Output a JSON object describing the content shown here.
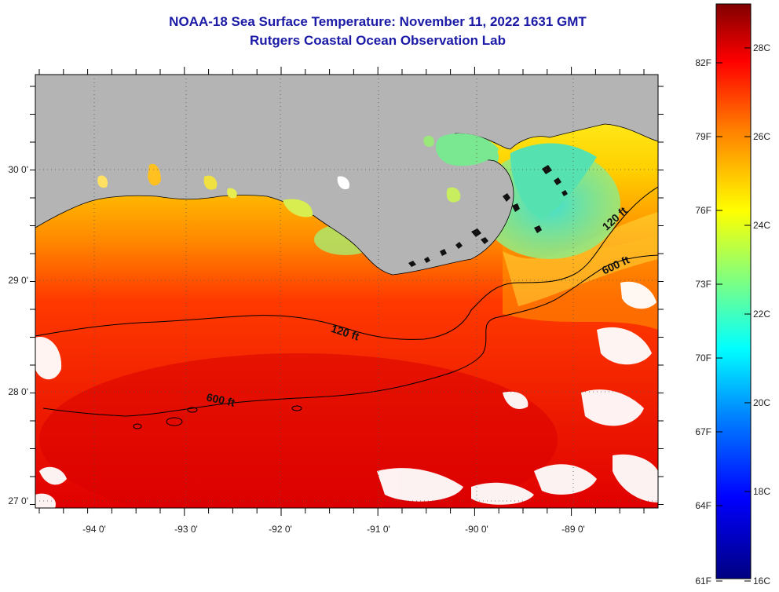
{
  "header": {
    "title": "NOAA-18 Sea Surface Temperature:  November 11, 2022 1631 GMT",
    "subtitle": "Rutgers Coastal Ocean Observation Lab"
  },
  "map": {
    "lon_labels": [
      "-94 0'",
      "-93 0'",
      "-92 0'",
      "-91 0'",
      "-90 0'",
      "-89 0'"
    ],
    "lat_labels": [
      "30 0'",
      "29 0'",
      "28 0'",
      "27 0'"
    ],
    "isobaths": [
      {
        "name": "120 ft",
        "label": "120 ft"
      },
      {
        "name": "600 ft",
        "label": "600 ft"
      }
    ],
    "isobath_labels": [
      "120 ft",
      "600 ft",
      "120 ft",
      "600 ft"
    ],
    "colors": {
      "land": "#b4b4b4",
      "cloud": "#ffffff",
      "contour": "#000000"
    }
  },
  "colorbar": {
    "fahrenheit_labels": [
      "82F",
      "79F",
      "76F",
      "73F",
      "70F",
      "67F",
      "64F",
      "61F"
    ],
    "celsius_labels": [
      "28C",
      "26C",
      "24C",
      "22C",
      "20C",
      "18C",
      "16C"
    ],
    "colors": [
      "#000080",
      "#0000ff",
      "#0080ff",
      "#00ffff",
      "#80ff80",
      "#ffff00",
      "#ff8000",
      "#ff0000",
      "#800000"
    ]
  }
}
